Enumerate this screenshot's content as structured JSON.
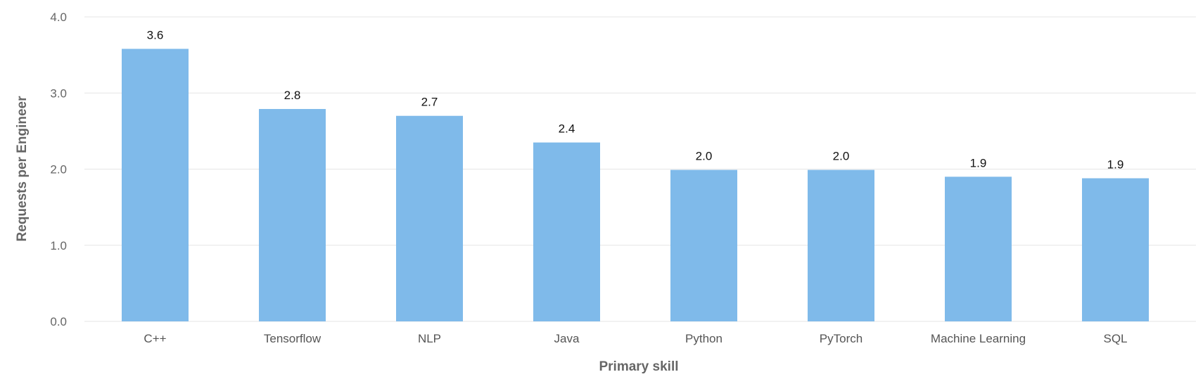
{
  "chart_data": {
    "type": "bar",
    "title": "",
    "xlabel": "Primary skill",
    "ylabel": "Requests per Engineer",
    "ylim": [
      0,
      4
    ],
    "yticks": [
      0,
      1,
      2,
      3,
      4
    ],
    "ytick_labels": [
      "0.0",
      "1.0",
      "2.0",
      "3.0",
      "4.0"
    ],
    "grid": true,
    "categories": [
      "C++",
      "Tensorflow",
      "NLP",
      "Java",
      "Python",
      "PyTorch",
      "Machine Learning",
      "SQL"
    ],
    "values": [
      3.58,
      2.79,
      2.7,
      2.35,
      1.99,
      1.99,
      1.9,
      1.88
    ],
    "data_labels": [
      "3.6",
      "2.8",
      "2.7",
      "2.4",
      "2.0",
      "2.0",
      "1.9",
      "1.9"
    ],
    "colors": {
      "bar": "#7fbaea",
      "grid": "#e6e6e6"
    }
  }
}
